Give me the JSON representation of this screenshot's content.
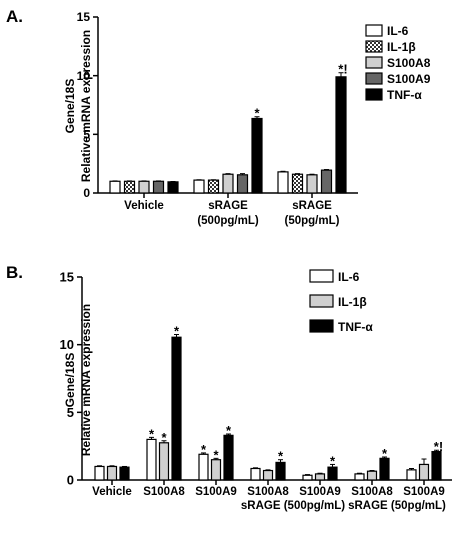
{
  "chart_data": [
    {
      "panel_label": "A.",
      "type": "bar",
      "ylabel_line1": "Gene/18S",
      "ylabel_line2": "Relative mRNA expression",
      "ylim": [
        0,
        15
      ],
      "yticks": [
        "0",
        "5",
        "10",
        "15"
      ],
      "groups": [
        {
          "lines": [
            "Vehicle"
          ]
        },
        {
          "lines": [
            "sRAGE",
            "(500pg/mL)"
          ]
        },
        {
          "lines": [
            "sRAGE",
            "(50pg/mL)"
          ]
        }
      ],
      "legend_position": "top-right",
      "series": [
        {
          "name": "IL-6",
          "fill": "#ffffff",
          "pattern": "none",
          "values": [
            1.0,
            1.1,
            1.8
          ],
          "errors": [
            0.03,
            0.03,
            0.05
          ],
          "annotations": [
            "",
            "",
            ""
          ]
        },
        {
          "name": "IL-1β",
          "fill": "#ffffff",
          "pattern": "checker",
          "values": [
            1.0,
            1.1,
            1.6
          ],
          "errors": [
            0.03,
            0.03,
            0.05
          ],
          "annotations": [
            "",
            "",
            ""
          ]
        },
        {
          "name": "S100A8",
          "fill": "#d0d0d0",
          "pattern": "none",
          "values": [
            1.0,
            1.6,
            1.55
          ],
          "errors": [
            0.03,
            0.05,
            0.05
          ],
          "annotations": [
            "",
            "",
            ""
          ]
        },
        {
          "name": "S100A9",
          "fill": "#666666",
          "pattern": "none",
          "values": [
            1.0,
            1.55,
            1.95
          ],
          "errors": [
            0.03,
            0.1,
            0.05
          ],
          "annotations": [
            "",
            "",
            ""
          ]
        },
        {
          "name": "TNF-α",
          "fill": "#000000",
          "pattern": "none",
          "values": [
            0.95,
            6.35,
            9.9
          ],
          "errors": [
            0.03,
            0.15,
            0.35
          ],
          "annotations": [
            "",
            "*",
            "*!"
          ]
        }
      ]
    },
    {
      "panel_label": "B.",
      "type": "bar",
      "ylabel_line1": "Gene/18S",
      "ylabel_line2": "Relative mRNA expression",
      "ylim": [
        0,
        15
      ],
      "yticks": [
        "0",
        "5",
        "10",
        "15"
      ],
      "groups": [
        {
          "lines": [
            "Vehicle"
          ]
        },
        {
          "lines": [
            "S100A8"
          ]
        },
        {
          "lines": [
            "S100A9"
          ]
        },
        {
          "lines": [
            "S100A8",
            "sRAGE (500pg/mL)"
          ]
        },
        {
          "lines": [
            "S100A9",
            ""
          ]
        },
        {
          "lines": [
            "S100A8",
            "sRAGE (50pg/mL)"
          ]
        },
        {
          "lines": [
            "S100A9",
            ""
          ]
        }
      ],
      "legend_position": "top-right",
      "series": [
        {
          "name": "IL-6",
          "fill": "#ffffff",
          "values": [
            1.0,
            3.0,
            1.9,
            0.85,
            0.35,
            0.45,
            0.75
          ],
          "errors": [
            0.05,
            0.15,
            0.1,
            0.05,
            0.05,
            0.05,
            0.1
          ],
          "annotations": [
            "",
            "*",
            "*",
            "",
            "",
            "",
            ""
          ]
        },
        {
          "name": "IL-1β",
          "fill": "#d0d0d0",
          "values": [
            1.0,
            2.75,
            1.5,
            0.7,
            0.45,
            0.65,
            1.15
          ],
          "errors": [
            0.05,
            0.15,
            0.1,
            0.05,
            0.05,
            0.05,
            0.4
          ],
          "annotations": [
            "",
            "*",
            "*",
            "",
            "",
            "",
            ""
          ]
        },
        {
          "name": "TNF-α",
          "fill": "#000000",
          "values": [
            0.95,
            10.55,
            3.3,
            1.3,
            0.95,
            1.6,
            2.1
          ],
          "errors": [
            0.05,
            0.2,
            0.1,
            0.2,
            0.2,
            0.1,
            0.1
          ],
          "annotations": [
            "",
            "*",
            "*",
            "*",
            "*",
            "*",
            "*!"
          ]
        }
      ]
    }
  ]
}
